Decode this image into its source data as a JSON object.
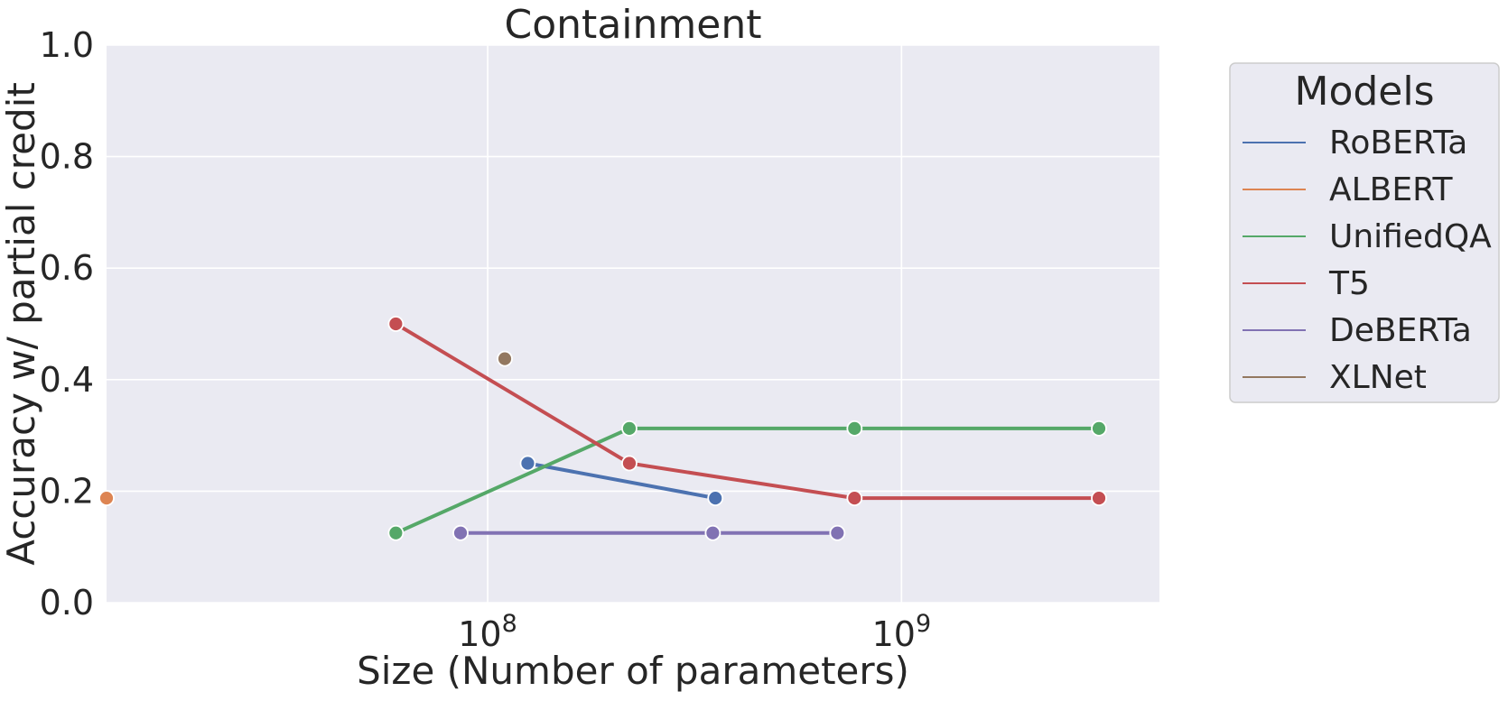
{
  "chart_data": {
    "type": "line",
    "title": "Containment",
    "xlabel": "Size (Number of parameters)",
    "ylabel": "Accuracy w/ partial credit",
    "x_scale": "log",
    "xlim": [
      12000000,
      4200000000
    ],
    "ylim": [
      0.0,
      1.0
    ],
    "x_ticks": [
      {
        "value": 100000000,
        "base": "10",
        "exp": "8"
      },
      {
        "value": 1000000000,
        "base": "10",
        "exp": "9"
      }
    ],
    "y_ticks": [
      0.0,
      0.2,
      0.4,
      0.6,
      0.8,
      1.0
    ],
    "y_tick_labels": [
      "0.0",
      "0.2",
      "0.4",
      "0.6",
      "0.8",
      "1.0"
    ],
    "grid": true,
    "background_color": "#eaeaf2",
    "legend": {
      "title": "Models",
      "placement": "outside-right-top"
    },
    "series": [
      {
        "name": "RoBERTa",
        "color": "#4c72b0",
        "points": [
          [
            125000000,
            0.25
          ],
          [
            355000000,
            0.1875
          ]
        ]
      },
      {
        "name": "ALBERT",
        "color": "#dd8452",
        "points": [
          [
            12000000,
            0.1875
          ]
        ]
      },
      {
        "name": "UnifiedQA",
        "color": "#55a868",
        "points": [
          [
            60000000,
            0.125
          ],
          [
            220000000,
            0.3125
          ],
          [
            770000000,
            0.3125
          ],
          [
            3000000000,
            0.3125
          ]
        ]
      },
      {
        "name": "T5",
        "color": "#c44e52",
        "points": [
          [
            60000000,
            0.5
          ],
          [
            220000000,
            0.25
          ],
          [
            770000000,
            0.1875
          ],
          [
            3000000000,
            0.1875
          ]
        ]
      },
      {
        "name": "DeBERTa",
        "color": "#8172b3",
        "points": [
          [
            86000000,
            0.125
          ],
          [
            350000000,
            0.125
          ],
          [
            700000000,
            0.125
          ]
        ]
      },
      {
        "name": "XLNet",
        "color": "#937860",
        "points": [
          [
            110000000,
            0.4375
          ]
        ]
      }
    ]
  }
}
